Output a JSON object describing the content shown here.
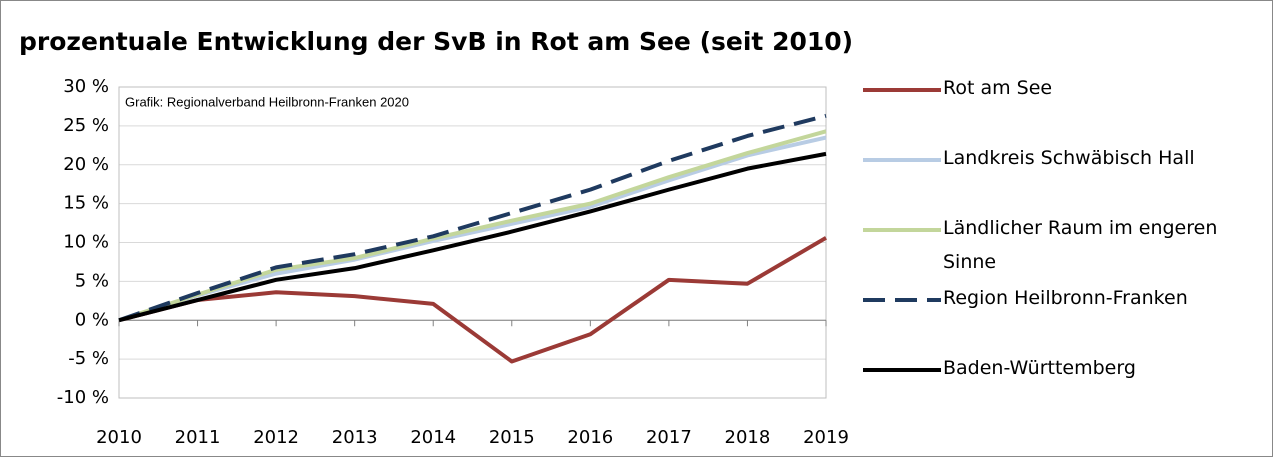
{
  "chart_data": {
    "type": "line",
    "title": "prozentuale Entwicklung der SvB in Rot am See (seit 2010)",
    "annotation": "Grafik: Regionalverband Heilbronn-Franken 2020",
    "categories": [
      "2010",
      "2011",
      "2012",
      "2013",
      "2014",
      "2015",
      "2016",
      "2017",
      "2018",
      "2019"
    ],
    "series": [
      {
        "name": "Rot am See",
        "color": "#9b3a36",
        "values": [
          0,
          2.6,
          3.6,
          3.1,
          2.1,
          -5.3,
          -1.8,
          5.2,
          4.7,
          10.6
        ]
      },
      {
        "name": "Landkreis Schwäbisch Hall",
        "color": "#b8cce4",
        "values": [
          0,
          3.2,
          6.0,
          7.8,
          10.2,
          12.4,
          14.6,
          18.0,
          21.2,
          23.5
        ]
      },
      {
        "name": "Ländlicher Raum im engeren Sinne",
        "color": "#c3d69b",
        "values": [
          0,
          3.3,
          6.5,
          8.0,
          10.5,
          12.8,
          15.0,
          18.4,
          21.5,
          24.3
        ]
      },
      {
        "name": "Region Heilbronn-Franken",
        "color": "#1f3a5f",
        "dashed": true,
        "values": [
          0,
          3.5,
          6.8,
          8.5,
          10.8,
          13.8,
          16.8,
          20.5,
          23.7,
          26.3
        ]
      },
      {
        "name": "Baden-Württemberg",
        "color": "#000000",
        "values": [
          0,
          2.6,
          5.2,
          6.7,
          9.0,
          11.4,
          14.0,
          16.8,
          19.5,
          21.4
        ]
      }
    ],
    "ylim": [
      -10,
      30
    ],
    "yticks": [
      {
        "value": -10,
        "label": "-10 %"
      },
      {
        "value": -5,
        "label": "-5 %"
      },
      {
        "value": 0,
        "label": "0 %"
      },
      {
        "value": 5,
        "label": "5 %"
      },
      {
        "value": 10,
        "label": "10 %"
      },
      {
        "value": 15,
        "label": "15 %"
      },
      {
        "value": 20,
        "label": "20 %"
      },
      {
        "value": 25,
        "label": "25 %"
      },
      {
        "value": 30,
        "label": "30 %"
      }
    ],
    "grid": true,
    "legend": "right"
  }
}
